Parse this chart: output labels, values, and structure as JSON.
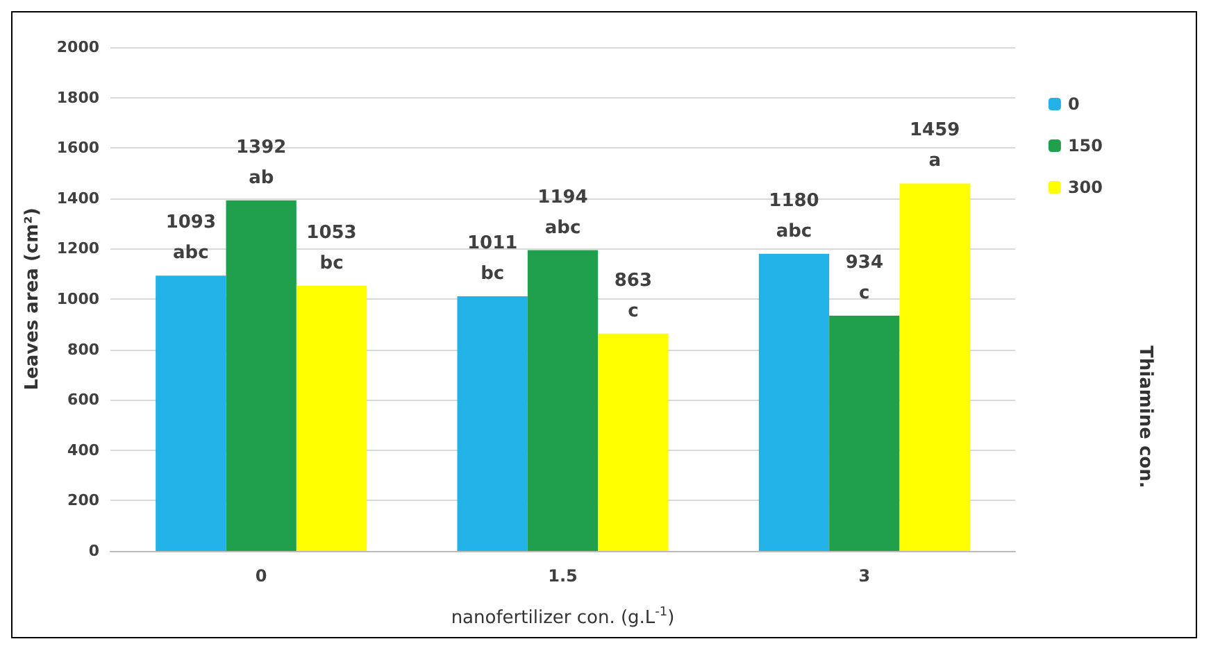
{
  "chart_data": {
    "type": "bar",
    "xlabel": "nanofertilizer con. (g.L$^{-1}$)",
    "ylabel": "Leaves area (cm²)",
    "legend_title": "Thiamine con.",
    "categories": [
      "0",
      "1.5",
      "3"
    ],
    "series": [
      {
        "name": "0",
        "color": "#22b2e8",
        "values": [
          1093,
          1011,
          1180
        ],
        "value_labels": [
          "1093\nabc",
          "1011\nbc",
          "1180\nabc"
        ]
      },
      {
        "name": "150",
        "color": "#20a04c",
        "values": [
          1392,
          1194,
          934
        ],
        "value_labels": [
          "1392\nab",
          "1194\nabc",
          "934\nc"
        ]
      },
      {
        "name": "300",
        "color": "#ffff00",
        "values": [
          1053,
          863,
          1459
        ],
        "value_labels": [
          "1053\nbc",
          "863\nc",
          "1459\na"
        ]
      }
    ],
    "ylim": [
      0,
      2000
    ],
    "yticks": [
      0,
      200,
      400,
      600,
      800,
      1000,
      1200,
      1400,
      1600,
      1800,
      2000
    ],
    "grid": "y",
    "legend": "right"
  }
}
